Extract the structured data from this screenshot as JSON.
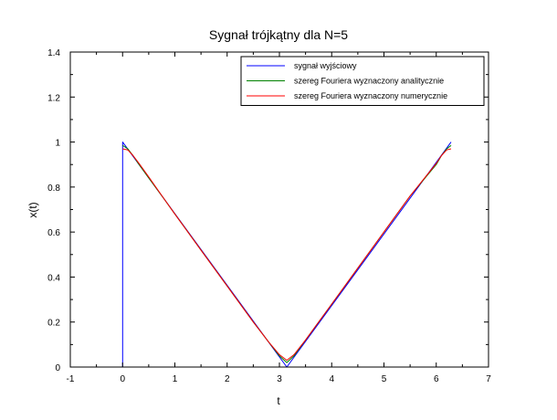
{
  "chart_data": {
    "type": "line",
    "title": "Sygnał trójkątny dla N=5",
    "xlabel": "t",
    "ylabel": "x(t)",
    "xlim": [
      -1,
      7
    ],
    "ylim": [
      0,
      1.4
    ],
    "xticks": [
      -1,
      0,
      1,
      2,
      3,
      4,
      5,
      6,
      7
    ],
    "yticks": [
      0,
      0.2,
      0.4,
      0.6,
      0.8,
      1,
      1.2,
      1.4
    ],
    "xtick_labels": [
      "-1",
      "0",
      "1",
      "2",
      "3",
      "4",
      "5",
      "6",
      "7"
    ],
    "ytick_labels": [
      "0",
      "0.2",
      "0.4",
      "0.6",
      "0.8",
      "1",
      "1.2",
      "1.4"
    ],
    "grid": false,
    "legend_position": "top-right",
    "series": [
      {
        "name": "sygnał wyjściowy",
        "color": "#0000ff",
        "x": [
          0,
          0,
          3.1416,
          6.2832
        ],
        "y": [
          0,
          1,
          0,
          1
        ]
      },
      {
        "name": "szereg Fouriera wyznaczony analitycznie",
        "color": "#008000",
        "x": [
          0,
          0.1,
          0.2,
          0.3,
          0.5,
          0.8,
          1.0,
          1.5,
          2.0,
          2.5,
          2.8,
          3.0,
          3.1416,
          3.28,
          3.5,
          4.0,
          4.5,
          5.0,
          5.5,
          6.0,
          6.1,
          6.2,
          6.2832
        ],
        "y": [
          0.985,
          0.97,
          0.94,
          0.905,
          0.84,
          0.745,
          0.68,
          0.52,
          0.36,
          0.2,
          0.11,
          0.05,
          0.02,
          0.05,
          0.12,
          0.28,
          0.44,
          0.6,
          0.76,
          0.9,
          0.94,
          0.97,
          0.985
        ]
      },
      {
        "name": "szereg Fouriera wyznaczony numerycznie",
        "color": "#ff0000",
        "x": [
          0,
          0.1,
          0.2,
          0.3,
          0.5,
          0.8,
          1.0,
          1.5,
          2.0,
          2.5,
          2.8,
          3.0,
          3.1416,
          3.28,
          3.5,
          4.0,
          4.5,
          5.0,
          5.5,
          6.0,
          6.1,
          6.2,
          6.2832
        ],
        "y": [
          0.97,
          0.965,
          0.94,
          0.91,
          0.845,
          0.745,
          0.68,
          0.52,
          0.36,
          0.2,
          0.11,
          0.055,
          0.03,
          0.055,
          0.12,
          0.28,
          0.44,
          0.6,
          0.76,
          0.905,
          0.94,
          0.965,
          0.97
        ]
      }
    ]
  }
}
